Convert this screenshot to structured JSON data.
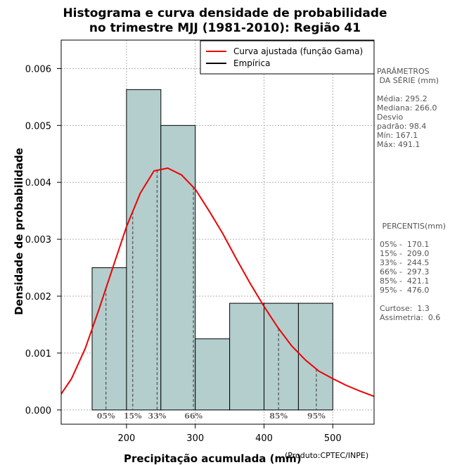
{
  "chart_data": {
    "type": "histogram",
    "title": [
      "Histograma e curva densidade de probabilidade",
      "no trimestre MJJ (1981-2010): Região 41"
    ],
    "xlabel": "Precipitação acumulada (mm)",
    "ylabel": "Densidade de probabilidade",
    "credit": "(Produto:CPTEC/INPE)",
    "xlim": [
      105,
      560
    ],
    "ylim": [
      -0.00025,
      0.0065
    ],
    "xticks": [
      200,
      300,
      400,
      500
    ],
    "yticks": [
      0.0,
      0.001,
      0.002,
      0.003,
      0.004,
      0.005,
      0.006
    ],
    "ytick_labels": [
      "0.000",
      "0.001",
      "0.002",
      "0.003",
      "0.004",
      "0.005",
      "0.006"
    ],
    "bins": [
      {
        "start": 150,
        "end": 200,
        "density": 0.0025
      },
      {
        "start": 200,
        "end": 250,
        "density": 0.00563
      },
      {
        "start": 250,
        "end": 300,
        "density": 0.005
      },
      {
        "start": 300,
        "end": 350,
        "density": 0.00125
      },
      {
        "start": 350,
        "end": 400,
        "density": 0.001875
      },
      {
        "start": 400,
        "end": 450,
        "density": 0.001875
      },
      {
        "start": 450,
        "end": 500,
        "density": 0.001875
      }
    ],
    "fitted_curve": {
      "name": "Curva ajustada (função Gama)",
      "color": "#ee0000",
      "x": [
        105,
        120,
        140,
        160,
        180,
        200,
        220,
        240,
        260,
        280,
        300,
        320,
        340,
        360,
        380,
        400,
        420,
        440,
        460,
        480,
        500,
        520,
        540,
        560
      ],
      "y": [
        0.00028,
        0.00055,
        0.00108,
        0.00177,
        0.0025,
        0.00322,
        0.00381,
        0.0042,
        0.00425,
        0.00413,
        0.00388,
        0.0035,
        0.0031,
        0.00265,
        0.00222,
        0.00182,
        0.00145,
        0.00113,
        0.00088,
        0.00068,
        0.00055,
        0.00043,
        0.00033,
        0.00024
      ]
    },
    "legend": [
      {
        "label": "Curva ajustada (função Gama)",
        "color": "#ee0000"
      },
      {
        "label": "Empírica",
        "color": "#000000"
      }
    ],
    "percentiles": [
      {
        "label": "05%",
        "x": 170.1
      },
      {
        "label": "15%",
        "x": 209.0
      },
      {
        "label": "33%",
        "x": 244.5
      },
      {
        "label": "66%",
        "x": 297.3
      },
      {
        "label": "85%",
        "x": 421.1
      },
      {
        "label": "95%",
        "x": 476.0
      }
    ],
    "colors": {
      "bar_fill": "#b4cece",
      "bar_stroke": "#000000",
      "grid": "#b0b0b0",
      "percentile_line": "#555555",
      "percentile_label": "#666666"
    }
  },
  "stats_panel": {
    "lines": [
      "PARÂMETROS",
      " DA SÉRIE (mm)",
      "",
      "Média: 295.2",
      "Mediana: 266.0",
      "Desvio",
      "padrão: 98.4",
      "Mín: 167.1",
      "Máx: 491.1"
    ]
  },
  "percentiles_panel": {
    "lines": [
      " PERCENTIS(mm)",
      "",
      "05% -  170.1",
      "15% -  209.0",
      "33% -  244.5",
      "66% -  297.3",
      "85% -  421.1",
      "95% -  476.0",
      "",
      "Curtose:  1.3",
      "Assimetria:  0.6"
    ]
  }
}
